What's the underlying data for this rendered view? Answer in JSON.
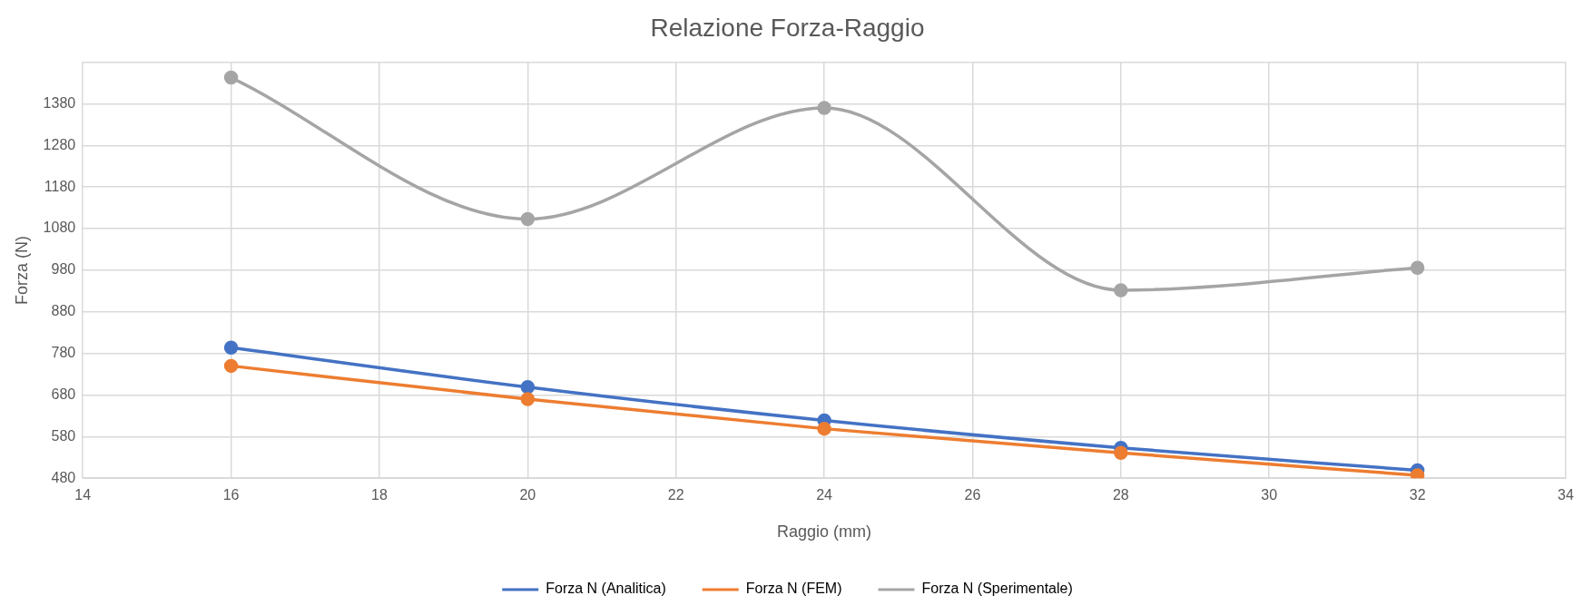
{
  "chart_data": {
    "type": "line",
    "title": "Relazione Forza-Raggio",
    "xlabel": "Raggio (mm)",
    "ylabel": "Forza (N)",
    "x": [
      16,
      20,
      24,
      28,
      32
    ],
    "series": [
      {
        "name": "Forza N (Analitica)",
        "color": "#4472c4",
        "values": [
          794,
          699,
          619,
          553,
          499
        ]
      },
      {
        "name": "Forza N (FEM)",
        "color": "#ed7d31",
        "values": [
          750,
          670,
          599,
          541,
          487
        ]
      },
      {
        "name": "Forza N (Sperimentale)",
        "color": "#a5a5a5",
        "values": [
          1443,
          1103,
          1370,
          932,
          986
        ]
      }
    ],
    "xlim": [
      14,
      34
    ],
    "xticks": [
      14,
      16,
      18,
      20,
      22,
      24,
      26,
      28,
      30,
      32,
      34
    ],
    "ylim": [
      480,
      1480
    ],
    "yticks": [
      480,
      580,
      680,
      780,
      880,
      980,
      1080,
      1180,
      1280,
      1380,
      {
        "value": 1480,
        "label": null
      }
    ],
    "grid": true,
    "legend": "bottom",
    "marker": "circle",
    "line_style": "solid"
  }
}
